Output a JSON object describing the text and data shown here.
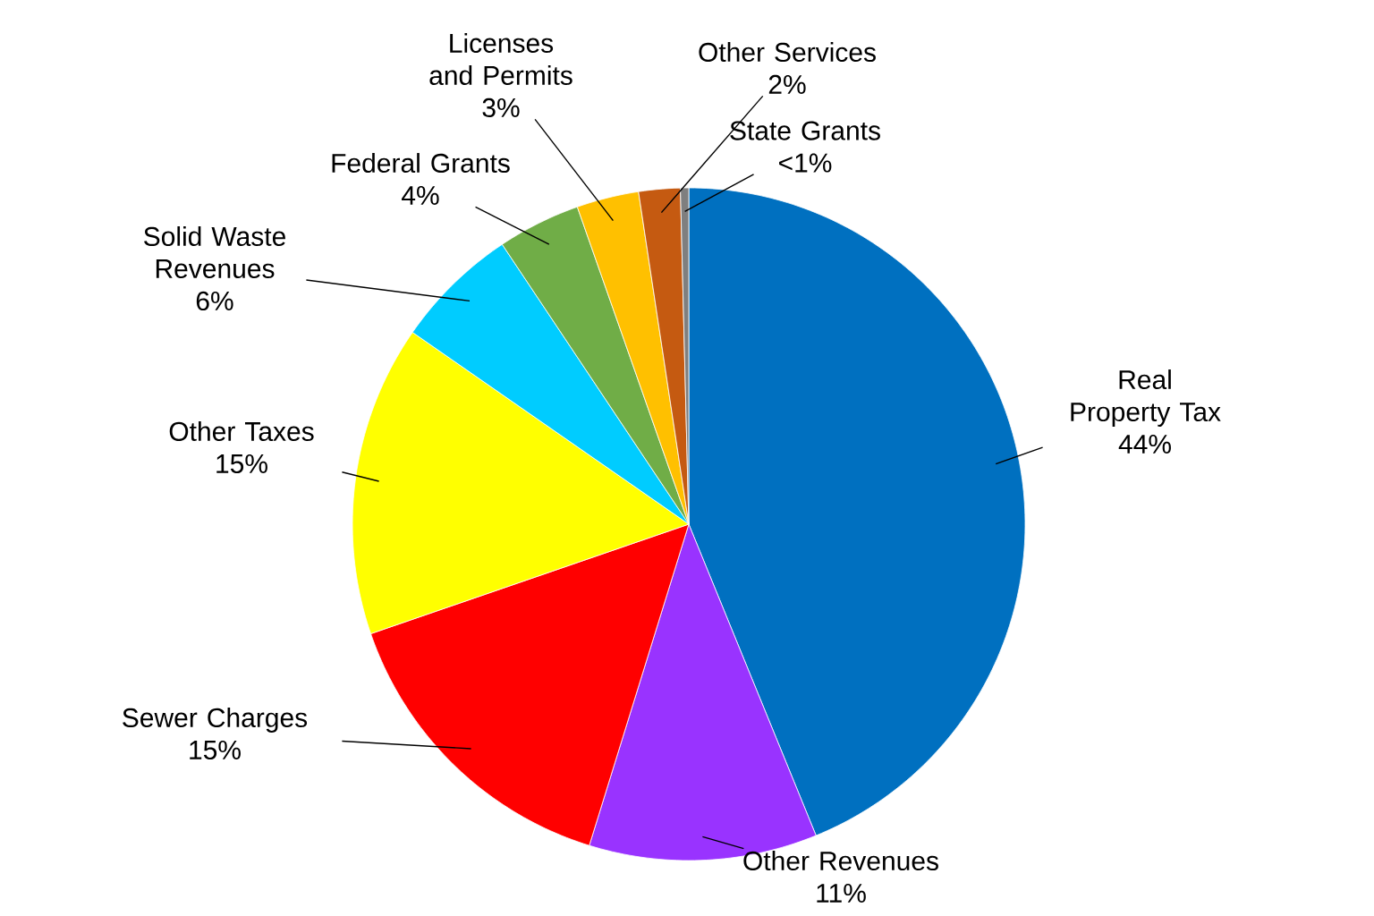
{
  "chart_data": {
    "type": "pie",
    "categories": [
      "Real Property Tax",
      "Other Revenues",
      "Sewer Charges",
      "Other Taxes",
      "Solid Waste Revenues",
      "Federal Grants",
      "Licenses and Permits",
      "Other Services",
      "State Grants"
    ],
    "values": [
      44,
      11,
      15,
      15,
      6,
      4,
      3,
      2,
      0.4
    ],
    "value_labels": [
      "44%",
      "11%",
      "15%",
      "15%",
      "6%",
      "4%",
      "3%",
      "2%",
      "<1%"
    ],
    "colors": [
      "#0070c0",
      "#9933ff",
      "#ff0000",
      "#ffff00",
      "#00ccff",
      "#70ad47",
      "#ffc000",
      "#c55a11",
      "#7f7f7f"
    ]
  }
}
